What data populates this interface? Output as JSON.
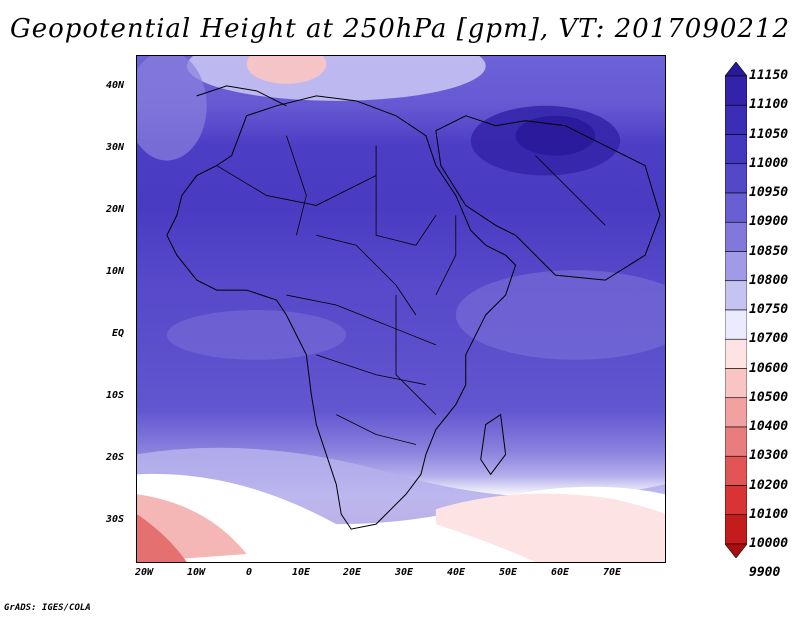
{
  "title": "Geopotential Height at 250hPa [gpm], VT: 2017090212",
  "footer": "GrADS: IGES/COLA",
  "lat_labels": [
    "40N",
    "30N",
    "20N",
    "10N",
    "EQ",
    "10S",
    "20S",
    "30S"
  ],
  "lon_labels": [
    "20W",
    "10W",
    "0",
    "10E",
    "20E",
    "30E",
    "40E",
    "50E",
    "60E",
    "70E"
  ],
  "colorbar": {
    "levels": [
      "11150",
      "11100",
      "11050",
      "11000",
      "10950",
      "10900",
      "10850",
      "10800",
      "10750",
      "10700",
      "10600",
      "10500",
      "10400",
      "10300",
      "10200",
      "10100",
      "10000",
      "9900"
    ],
    "colors": [
      "#2a1a9a",
      "#3423a8",
      "#3c2db6",
      "#4637c0",
      "#5447c8",
      "#6a5fd2",
      "#8278dc",
      "#a19ae6",
      "#c6c2f2",
      "#eceaff",
      "#fde3e3",
      "#f8c4c4",
      "#f1a1a1",
      "#e97d7d",
      "#e25555",
      "#d83434",
      "#c41c1c",
      "#a81010"
    ]
  }
}
